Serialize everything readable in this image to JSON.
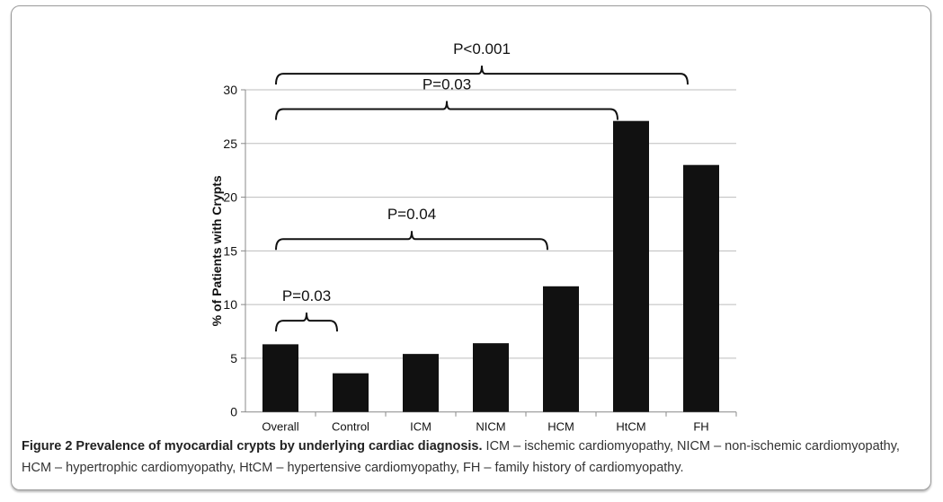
{
  "chart_data": {
    "type": "bar",
    "title": "",
    "xlabel": "",
    "ylabel": "% of Patients with Crypts",
    "ylim": [
      0,
      30
    ],
    "yticks": [
      "0",
      "5",
      "10",
      "15",
      "20",
      "25",
      "30"
    ],
    "grid": true,
    "categories": [
      "Overall",
      "Control",
      "ICM",
      "NICM",
      "HCM",
      "HtCM",
      "FH"
    ],
    "values": [
      6.3,
      3.6,
      5.4,
      6.4,
      11.7,
      27.1,
      23.0
    ],
    "bar_color": "#111111",
    "annotations": [
      {
        "label": "P<0.001",
        "from": "Overall",
        "to": "FH",
        "level": 31.5
      },
      {
        "label": "P=0.03",
        "from": "Overall",
        "to": "HtCM",
        "level": 28.2
      },
      {
        "label": "P=0.04",
        "from": "Overall",
        "to": "HCM",
        "level": 16.1
      },
      {
        "label": "P=0.03",
        "from": "Overall",
        "to": "Control",
        "level": 8.5
      }
    ]
  },
  "caption": {
    "title": "Figure 2 Prevalence of myocardial crypts by underlying cardiac diagnosis.",
    "text": "ICM – ischemic cardiomyopathy, NICM – non-ischemic cardiomyopathy, HCM – hypertrophic cardiomyopathy, HtCM – hypertensive cardiomyopathy, FH – family history of cardiomyopathy."
  }
}
